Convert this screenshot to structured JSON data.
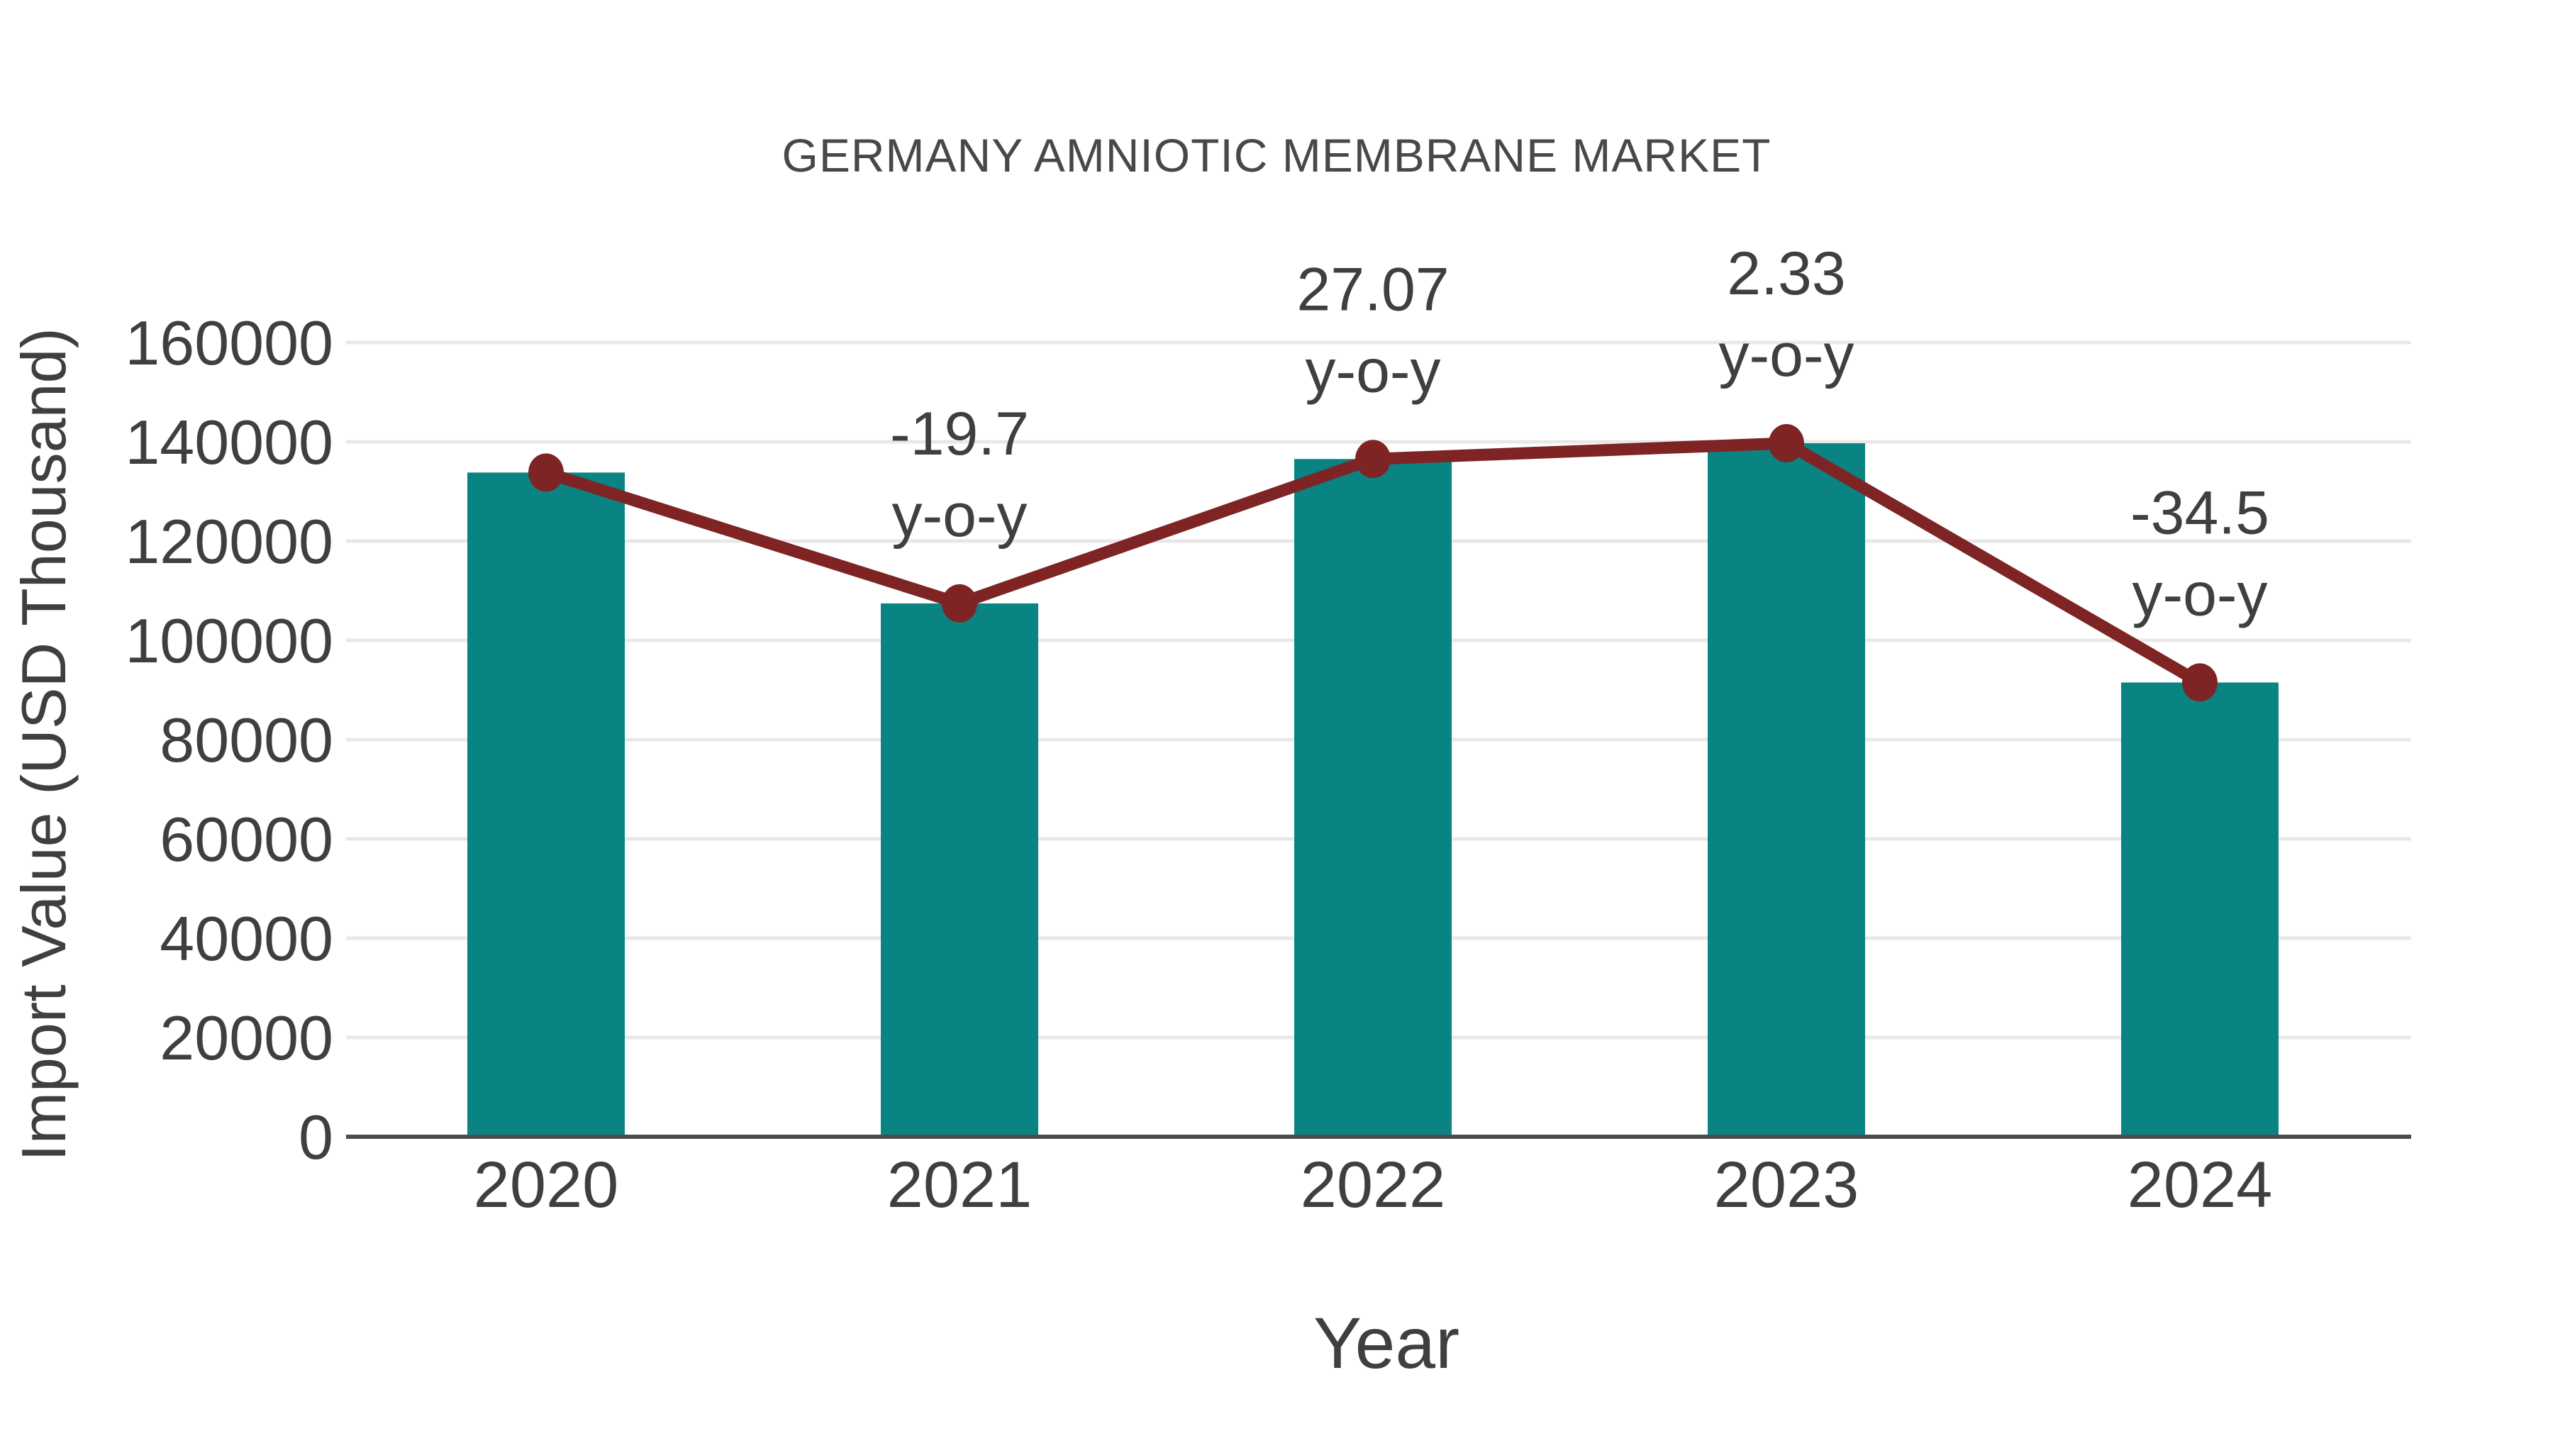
{
  "chart_data": {
    "type": "bar",
    "combo": "bar+line",
    "title": "GERMANY AMNIOTIC MEMBRANE MARKET",
    "xlabel": "Year",
    "ylabel": "Import Value (USD Thousand)",
    "categories": [
      "2020",
      "2021",
      "2022",
      "2023",
      "2024"
    ],
    "series": [
      {
        "name": "Import Value (USD Thousand)",
        "type": "bar",
        "color": "#0a8383",
        "values": [
          133800,
          107440,
          136530,
          139710,
          91510
        ]
      },
      {
        "name": "y-o-y trend",
        "type": "line",
        "color": "#7e2424",
        "values": [
          133800,
          107440,
          136530,
          139710,
          91510
        ]
      }
    ],
    "annotations": [
      {
        "category": "2021",
        "value": "-19.7",
        "suffix": "y-o-y"
      },
      {
        "category": "2022",
        "value": "27.07",
        "suffix": "y-o-y"
      },
      {
        "category": "2023",
        "value": "2.33",
        "suffix": "y-o-y"
      },
      {
        "category": "2024",
        "value": "-34.5",
        "suffix": "y-o-y"
      }
    ],
    "yaxis": {
      "min": 0,
      "max": 160000,
      "tick_step": 20000
    },
    "grid": true,
    "legend": "none",
    "colors": {
      "bar": "#0a8383",
      "line": "#7e2424",
      "gridline": "#e8e8e8",
      "axis": "#4d4d4d",
      "text": "#3f3f3f",
      "title_text": "#484848"
    }
  }
}
